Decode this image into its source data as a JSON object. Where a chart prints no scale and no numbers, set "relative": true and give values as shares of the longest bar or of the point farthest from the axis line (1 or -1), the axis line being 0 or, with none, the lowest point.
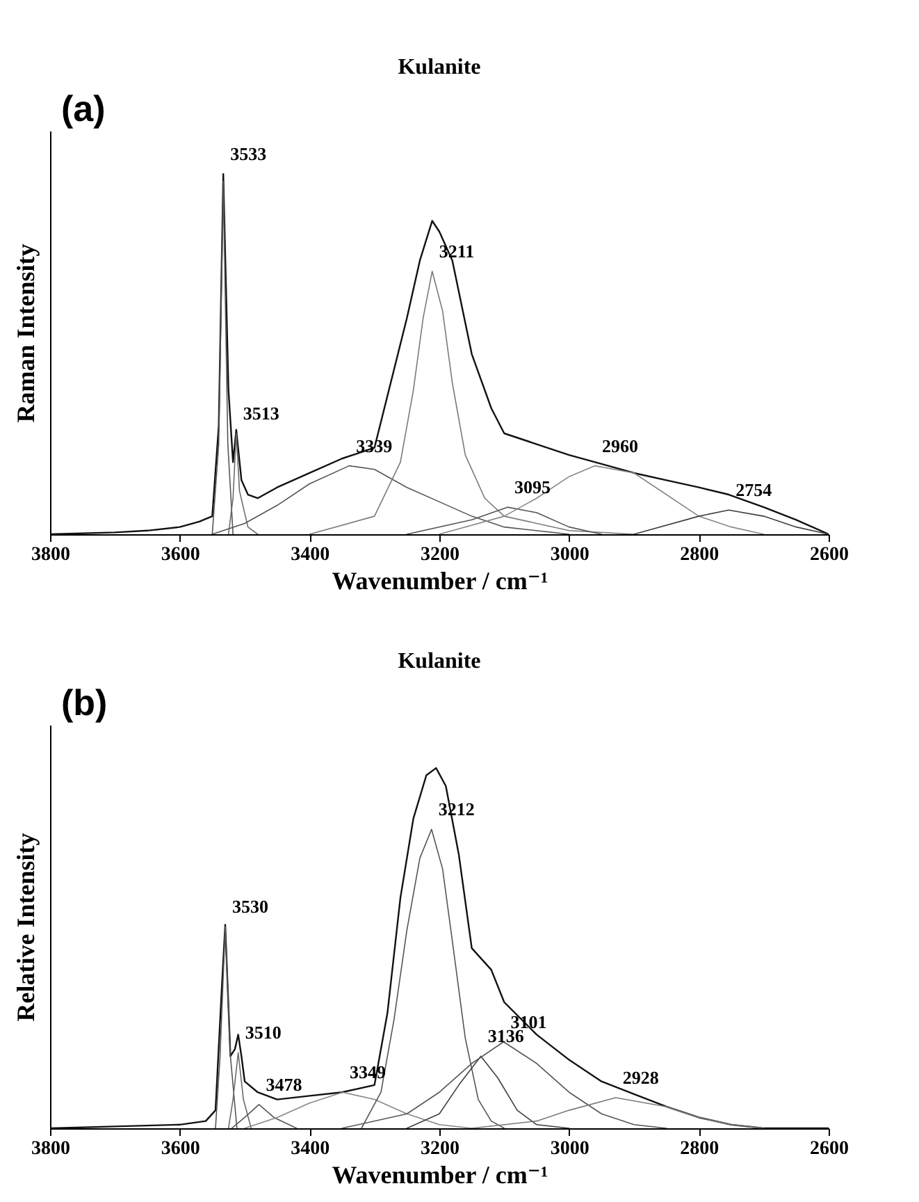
{
  "chart_data": [
    {
      "type": "line",
      "title": "Kulanite",
      "xlabel": "Wavenumber / cm⁻¹",
      "ylabel": "Raman Intensity",
      "relative": true,
      "grid": false,
      "xlim": [
        3800,
        2600
      ],
      "xticks": [
        3800,
        3600,
        3400,
        3200,
        3000,
        2800,
        2600
      ],
      "annotations": [
        "(a)",
        {
          "text": "3533",
          "x": 3533,
          "y": 1.0
        },
        {
          "text": "3513",
          "x": 3513,
          "y": 0.28
        },
        {
          "text": "3339",
          "x": 3339,
          "y": 0.19
        },
        {
          "text": "3211",
          "x": 3211,
          "y": 0.73
        },
        {
          "text": "3095",
          "x": 3095,
          "y": 0.075
        },
        {
          "text": "2960",
          "x": 2960,
          "y": 0.19
        },
        {
          "text": "2754",
          "x": 2754,
          "y": 0.067
        }
      ],
      "series": [
        {
          "color": "#111111",
          "x": [
            3800,
            3700,
            3650,
            3600,
            3570,
            3550,
            3540,
            3533,
            3525,
            3518,
            3513,
            3505,
            3495,
            3480,
            3450,
            3400,
            3350,
            3300,
            3250,
            3230,
            3211,
            3200,
            3180,
            3150,
            3120,
            3100,
            3050,
            3000,
            2960,
            2900,
            2850,
            2800,
            2754,
            2700,
            2650,
            2600
          ],
          "values": [
            0,
            0.005,
            0.01,
            0.02,
            0.035,
            0.05,
            0.3,
            1.0,
            0.4,
            0.2,
            0.29,
            0.15,
            0.11,
            0.1,
            0.13,
            0.17,
            0.21,
            0.24,
            0.6,
            0.76,
            0.87,
            0.84,
            0.76,
            0.5,
            0.35,
            0.28,
            0.25,
            0.22,
            0.2,
            0.17,
            0.15,
            0.13,
            0.11,
            0.075,
            0.04,
            0
          ]
        },
        {
          "color": "#555555",
          "x": [
            3550,
            3540,
            3533,
            3526,
            3518
          ],
          "values": [
            0,
            0.25,
            0.98,
            0.25,
            0
          ]
        },
        {
          "color": "#6b6b6b",
          "x": [
            3525,
            3518,
            3513,
            3508,
            3495,
            3480
          ],
          "values": [
            0,
            0.1,
            0.28,
            0.12,
            0.02,
            0
          ]
        },
        {
          "color": "#555555",
          "x": [
            3550,
            3500,
            3450,
            3400,
            3339,
            3300,
            3250,
            3200,
            3150,
            3100,
            3000
          ],
          "values": [
            0,
            0.03,
            0.08,
            0.14,
            0.19,
            0.18,
            0.13,
            0.09,
            0.05,
            0.02,
            0
          ]
        },
        {
          "color": "#7a7a7a",
          "x": [
            3400,
            3300,
            3260,
            3240,
            3225,
            3211,
            3195,
            3180,
            3160,
            3130,
            3100,
            3000,
            2900
          ],
          "values": [
            0,
            0.05,
            0.2,
            0.4,
            0.6,
            0.73,
            0.62,
            0.42,
            0.22,
            0.1,
            0.05,
            0.01,
            0
          ]
        },
        {
          "color": "#555555",
          "x": [
            3250,
            3150,
            3095,
            3050,
            3000,
            2950
          ],
          "values": [
            0,
            0.04,
            0.075,
            0.06,
            0.02,
            0
          ]
        },
        {
          "color": "#888888",
          "x": [
            3200,
            3100,
            3050,
            3000,
            2960,
            2900,
            2850,
            2800,
            2750,
            2700
          ],
          "values": [
            0,
            0.05,
            0.1,
            0.16,
            0.19,
            0.17,
            0.11,
            0.05,
            0.02,
            0
          ]
        },
        {
          "color": "#3f3f3f",
          "x": [
            2900,
            2800,
            2754,
            2700,
            2650,
            2600
          ],
          "values": [
            0,
            0.05,
            0.067,
            0.05,
            0.02,
            0
          ]
        }
      ]
    },
    {
      "type": "line",
      "title": "Kulanite",
      "xlabel": "Wavenumber / cm⁻¹",
      "ylabel": "Relative Intensity",
      "relative": true,
      "grid": false,
      "xlim": [
        3800,
        2600
      ],
      "xticks": [
        3800,
        3600,
        3400,
        3200,
        3000,
        2800,
        2600
      ],
      "annotations": [
        "(b)",
        {
          "text": "3530",
          "x": 3530,
          "y": 0.56
        },
        {
          "text": "3510",
          "x": 3510,
          "y": 0.21
        },
        {
          "text": "3478",
          "x": 3478,
          "y": 0.066
        },
        {
          "text": "3349",
          "x": 3349,
          "y": 0.1
        },
        {
          "text": "3212",
          "x": 3212,
          "y": 0.83
        },
        {
          "text": "3136",
          "x": 3136,
          "y": 0.2
        },
        {
          "text": "3101",
          "x": 3101,
          "y": 0.24
        },
        {
          "text": "2928",
          "x": 2928,
          "y": 0.085
        }
      ],
      "series": [
        {
          "color": "#111111",
          "x": [
            3800,
            3700,
            3600,
            3560,
            3545,
            3535,
            3530,
            3522,
            3515,
            3510,
            3505,
            3500,
            3480,
            3450,
            3400,
            3350,
            3300,
            3280,
            3260,
            3240,
            3220,
            3205,
            3190,
            3170,
            3150,
            3120,
            3100,
            3050,
            3000,
            2950,
            2900,
            2850,
            2800,
            2750,
            2700,
            2600
          ],
          "values": [
            0,
            0.005,
            0.01,
            0.02,
            0.05,
            0.4,
            0.565,
            0.2,
            0.22,
            0.26,
            0.2,
            0.13,
            0.1,
            0.08,
            0.09,
            0.1,
            0.12,
            0.32,
            0.64,
            0.86,
            0.98,
            1.0,
            0.95,
            0.76,
            0.5,
            0.44,
            0.35,
            0.26,
            0.19,
            0.13,
            0.095,
            0.06,
            0.03,
            0.01,
            0,
            0
          ]
        },
        {
          "color": "#555555",
          "x": [
            3545,
            3538,
            3530,
            3522,
            3512
          ],
          "values": [
            0,
            0.2,
            0.56,
            0.2,
            0
          ]
        },
        {
          "color": "#6b6b6b",
          "x": [
            3525,
            3518,
            3510,
            3502,
            3490
          ],
          "values": [
            0,
            0.08,
            0.21,
            0.08,
            0
          ]
        },
        {
          "color": "#555555",
          "x": [
            3520,
            3500,
            3478,
            3455,
            3420
          ],
          "values": [
            0,
            0.03,
            0.066,
            0.03,
            0
          ]
        },
        {
          "color": "#888888",
          "x": [
            3500,
            3450,
            3400,
            3349,
            3300,
            3250,
            3200,
            3150
          ],
          "values": [
            0,
            0.03,
            0.07,
            0.1,
            0.08,
            0.04,
            0.01,
            0
          ]
        },
        {
          "color": "#555555",
          "x": [
            3320,
            3290,
            3270,
            3250,
            3230,
            3212,
            3195,
            3180,
            3160,
            3140,
            3120,
            3100
          ],
          "values": [
            0,
            0.1,
            0.3,
            0.55,
            0.75,
            0.83,
            0.72,
            0.52,
            0.25,
            0.08,
            0.02,
            0
          ]
        },
        {
          "color": "#3f3f3f",
          "x": [
            3250,
            3200,
            3170,
            3136,
            3110,
            3080,
            3050,
            3000
          ],
          "values": [
            0,
            0.04,
            0.12,
            0.2,
            0.14,
            0.05,
            0.01,
            0
          ]
        },
        {
          "color": "#555555",
          "x": [
            3350,
            3250,
            3200,
            3150,
            3101,
            3050,
            3000,
            2950,
            2900,
            2850
          ],
          "values": [
            0,
            0.04,
            0.1,
            0.18,
            0.24,
            0.18,
            0.1,
            0.04,
            0.01,
            0
          ]
        },
        {
          "color": "#7a7a7a",
          "x": [
            3150,
            3050,
            3000,
            2928,
            2850,
            2800,
            2750,
            2700
          ],
          "values": [
            0,
            0.02,
            0.05,
            0.085,
            0.06,
            0.03,
            0.01,
            0
          ]
        }
      ]
    }
  ]
}
